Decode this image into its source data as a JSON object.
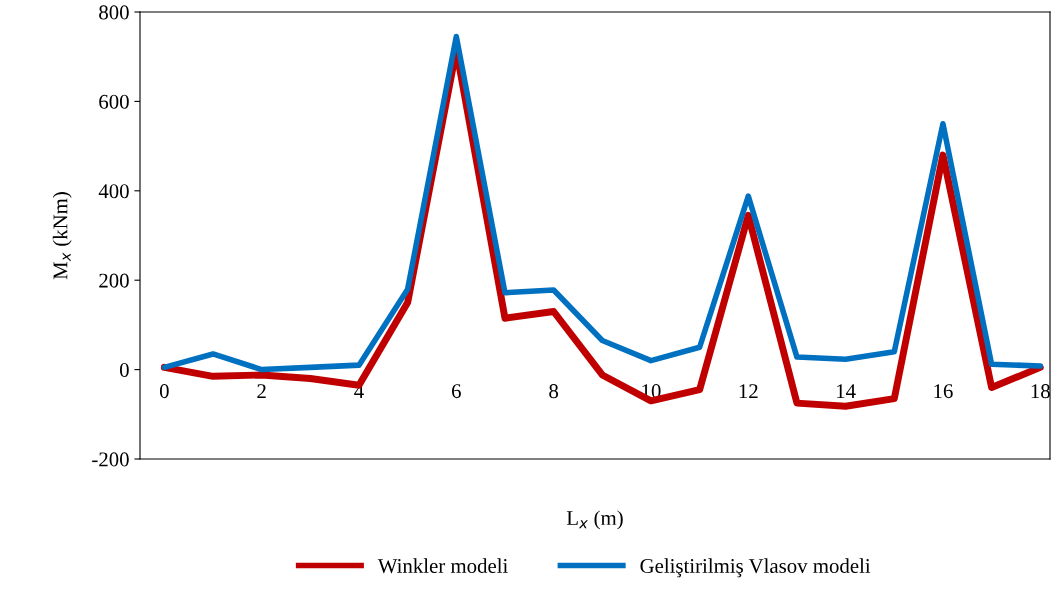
{
  "chart_data": {
    "type": "line",
    "xlabel": "L$_{x}$ (m)",
    "ylabel": "M$_{x}$ (kNm)",
    "x": [
      0,
      1,
      2,
      3,
      4,
      5,
      6,
      7,
      8,
      9,
      10,
      11,
      12,
      13,
      14,
      15,
      16,
      17,
      18
    ],
    "series": [
      {
        "name": "Winkler modeli",
        "color": "#c00000",
        "values": [
          5,
          -15,
          -12,
          -20,
          -35,
          150,
          715,
          115,
          130,
          -12,
          -70,
          -45,
          345,
          -75,
          -82,
          -65,
          480,
          -40,
          5
        ]
      },
      {
        "name": "Geliştirilmiş Vlasov modeli",
        "color": "#0070c0",
        "values": [
          5,
          35,
          0,
          5,
          10,
          180,
          745,
          172,
          178,
          65,
          20,
          50,
          388,
          28,
          23,
          40,
          550,
          12,
          8
        ]
      }
    ],
    "xlim": [
      -0.5,
      18.2
    ],
    "xticks": [
      0,
      2,
      4,
      6,
      8,
      10,
      12,
      14,
      16,
      18
    ],
    "ylim": [
      -200,
      800
    ],
    "yticks": [
      -200,
      0,
      200,
      400,
      600,
      800
    ],
    "grid": false,
    "legend": "bottom",
    "marker": "none",
    "line_style": "solid"
  }
}
